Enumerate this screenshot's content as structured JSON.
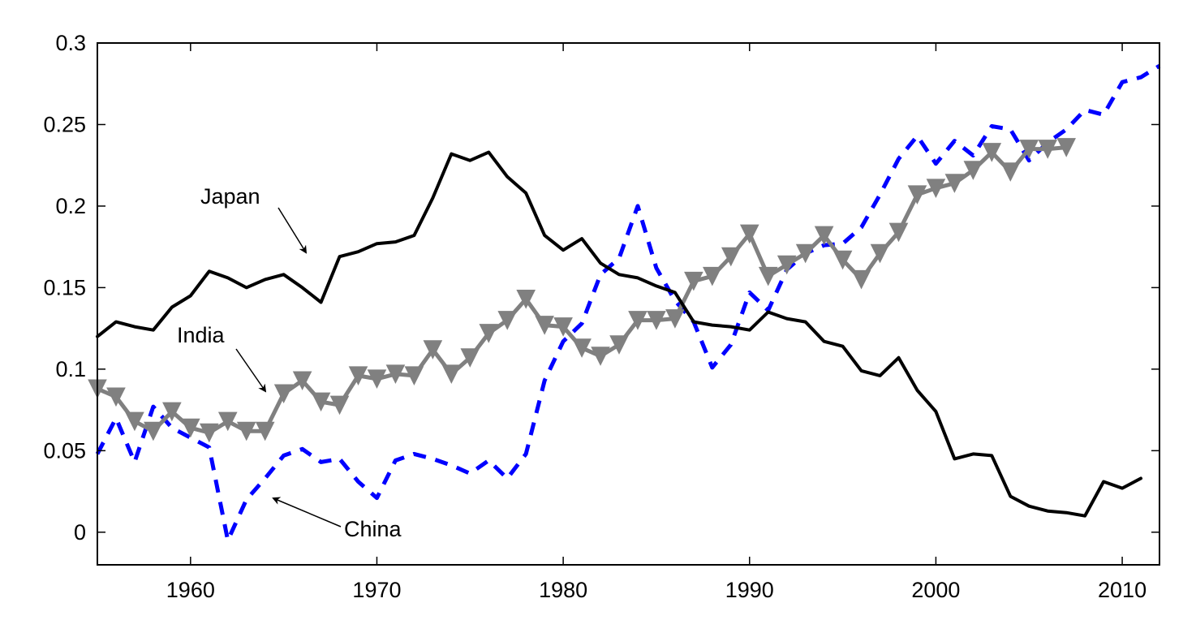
{
  "chart_data": {
    "type": "line",
    "title": "",
    "xlabel": "",
    "ylabel": "",
    "xlim": [
      1955,
      2012
    ],
    "ylim": [
      -0.02,
      0.3
    ],
    "x_ticks": [
      1960,
      1970,
      1980,
      1990,
      2000,
      2010
    ],
    "y_ticks": [
      0,
      0.05,
      0.1,
      0.15,
      0.2,
      0.25,
      0.3
    ],
    "x_tick_labels": [
      "1960",
      "1970",
      "1980",
      "1990",
      "2000",
      "2010"
    ],
    "y_tick_labels": [
      "0",
      "0.05",
      "0.1",
      "0.15",
      "0.2",
      "0.25",
      "0.3"
    ],
    "grid": false,
    "legend": "none (inline annotations with arrows)",
    "series": [
      {
        "name": "Japan",
        "color": "#000000",
        "style": "solid",
        "x": [
          1955,
          1956,
          1957,
          1958,
          1959,
          1960,
          1961,
          1962,
          1963,
          1964,
          1965,
          1966,
          1967,
          1968,
          1969,
          1970,
          1971,
          1972,
          1973,
          1974,
          1975,
          1976,
          1977,
          1978,
          1979,
          1980,
          1981,
          1982,
          1983,
          1984,
          1985,
          1986,
          1987,
          1988,
          1989,
          1990,
          1991,
          1992,
          1993,
          1994,
          1995,
          1996,
          1997,
          1998,
          1999,
          2000,
          2001,
          2002,
          2003,
          2004,
          2005,
          2006,
          2007,
          2008,
          2009,
          2010,
          2011
        ],
        "values": [
          0.12,
          0.129,
          0.126,
          0.124,
          0.138,
          0.145,
          0.16,
          0.156,
          0.15,
          0.155,
          0.158,
          0.15,
          0.141,
          0.169,
          0.172,
          0.177,
          0.178,
          0.182,
          0.205,
          0.232,
          0.228,
          0.233,
          0.218,
          0.208,
          0.182,
          0.173,
          0.18,
          0.165,
          0.158,
          0.156,
          0.151,
          0.147,
          0.129,
          0.127,
          0.126,
          0.124,
          0.135,
          0.131,
          0.129,
          0.117,
          0.114,
          0.099,
          0.096,
          0.107,
          0.087,
          0.074,
          0.045,
          0.048,
          0.047,
          0.022,
          0.016,
          0.013,
          0.012,
          0.01,
          0.031,
          0.027,
          0.033
        ]
      },
      {
        "name": "India",
        "color": "#808080",
        "style": "solid-triangle-markers",
        "x": [
          1955,
          1956,
          1957,
          1958,
          1959,
          1960,
          1961,
          1962,
          1963,
          1964,
          1965,
          1966,
          1967,
          1968,
          1969,
          1970,
          1971,
          1972,
          1973,
          1974,
          1975,
          1976,
          1977,
          1978,
          1979,
          1980,
          1981,
          1982,
          1983,
          1984,
          1985,
          1986,
          1987,
          1988,
          1989,
          1990,
          1991,
          1992,
          1993,
          1994,
          1995,
          1996,
          1997,
          1998,
          1999,
          2000,
          2001,
          2002,
          2003,
          2004,
          2005,
          2006,
          2007
        ],
        "values": [
          0.088,
          0.083,
          0.068,
          0.062,
          0.074,
          0.064,
          0.061,
          0.068,
          0.062,
          0.062,
          0.085,
          0.093,
          0.08,
          0.078,
          0.096,
          0.094,
          0.097,
          0.096,
          0.112,
          0.097,
          0.107,
          0.122,
          0.13,
          0.143,
          0.127,
          0.126,
          0.113,
          0.108,
          0.115,
          0.13,
          0.13,
          0.131,
          0.154,
          0.157,
          0.169,
          0.183,
          0.157,
          0.164,
          0.171,
          0.182,
          0.167,
          0.155,
          0.171,
          0.184,
          0.207,
          0.211,
          0.214,
          0.222,
          0.233,
          0.221,
          0.235,
          0.235,
          0.236
        ]
      },
      {
        "name": "China",
        "color": "#0000FF",
        "style": "dashed",
        "x": [
          1955,
          1956,
          1957,
          1958,
          1959,
          1960,
          1961,
          1962,
          1963,
          1964,
          1965,
          1966,
          1967,
          1968,
          1969,
          1970,
          1971,
          1972,
          1973,
          1974,
          1975,
          1976,
          1977,
          1978,
          1979,
          1980,
          1981,
          1982,
          1983,
          1984,
          1985,
          1986,
          1987,
          1988,
          1989,
          1990,
          1991,
          1992,
          1993,
          1994,
          1995,
          1996,
          1997,
          1998,
          1999,
          2000,
          2001,
          2002,
          2003,
          2004,
          2005,
          2006,
          2007,
          2008,
          2009,
          2010,
          2011,
          2012
        ],
        "values": [
          0.048,
          0.07,
          0.043,
          0.077,
          0.064,
          0.058,
          0.052,
          -0.005,
          0.02,
          0.033,
          0.047,
          0.051,
          0.043,
          0.045,
          0.031,
          0.021,
          0.044,
          0.048,
          0.045,
          0.041,
          0.036,
          0.044,
          0.033,
          0.048,
          0.093,
          0.117,
          0.128,
          0.158,
          0.168,
          0.2,
          0.162,
          0.142,
          0.129,
          0.101,
          0.115,
          0.147,
          0.136,
          0.161,
          0.171,
          0.176,
          0.177,
          0.187,
          0.207,
          0.229,
          0.243,
          0.226,
          0.24,
          0.231,
          0.249,
          0.247,
          0.228,
          0.239,
          0.247,
          0.259,
          0.256,
          0.276,
          0.279,
          0.286
        ]
      }
    ],
    "annotations": [
      {
        "text": "Japan",
        "series": "Japan"
      },
      {
        "text": "India",
        "series": "India"
      },
      {
        "text": "China",
        "series": "China"
      }
    ]
  }
}
